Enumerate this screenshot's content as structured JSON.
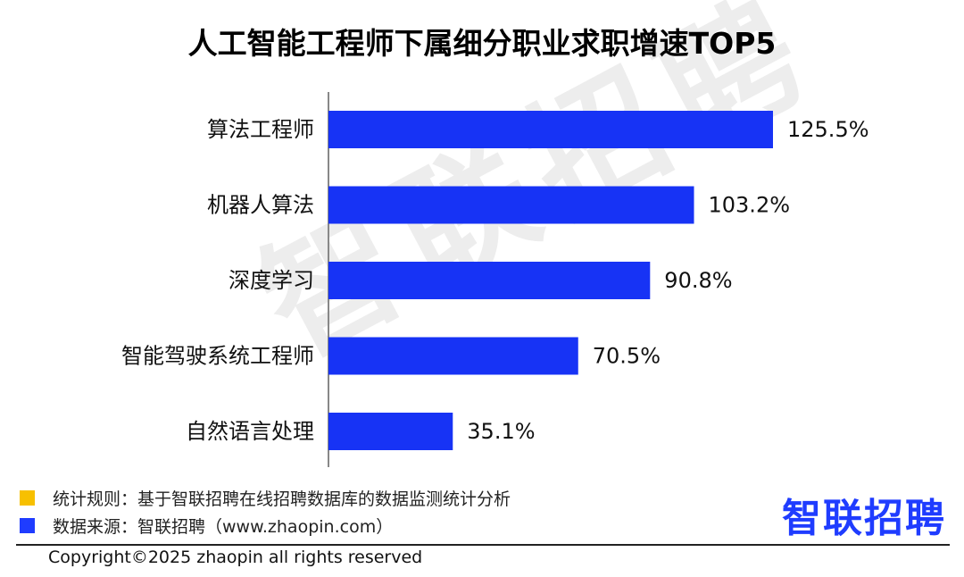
{
  "chart_data": {
    "type": "bar",
    "orientation": "horizontal",
    "title": "人工智能工程师下属细分职业求职增速TOP5",
    "categories": [
      "算法工程师",
      "机器人算法",
      "深度学习",
      "智能驾驶系统工程师",
      "自然语言处理"
    ],
    "values": [
      125.5,
      103.2,
      90.8,
      70.5,
      35.1
    ],
    "value_labels": [
      "125.5%",
      "103.2%",
      "90.8%",
      "70.5%",
      "35.1%"
    ],
    "bar_color": "#1733f5",
    "xlim": [
      0,
      125.5
    ],
    "grid": false
  },
  "watermark": "智联招聘",
  "legend": [
    {
      "text": "统计规则：基于智联招聘在线招聘数据库的数据监测统计分析",
      "color": "#f7c000"
    },
    {
      "text": "数据来源：智联招聘（www.zhaopin.com）",
      "color": "#1f3cff"
    }
  ],
  "logo": {
    "text": "智联招聘",
    "color": "#1f3cff"
  },
  "footer": {
    "copyright": "Copyright©2025 zhaopin all rights reserved"
  }
}
